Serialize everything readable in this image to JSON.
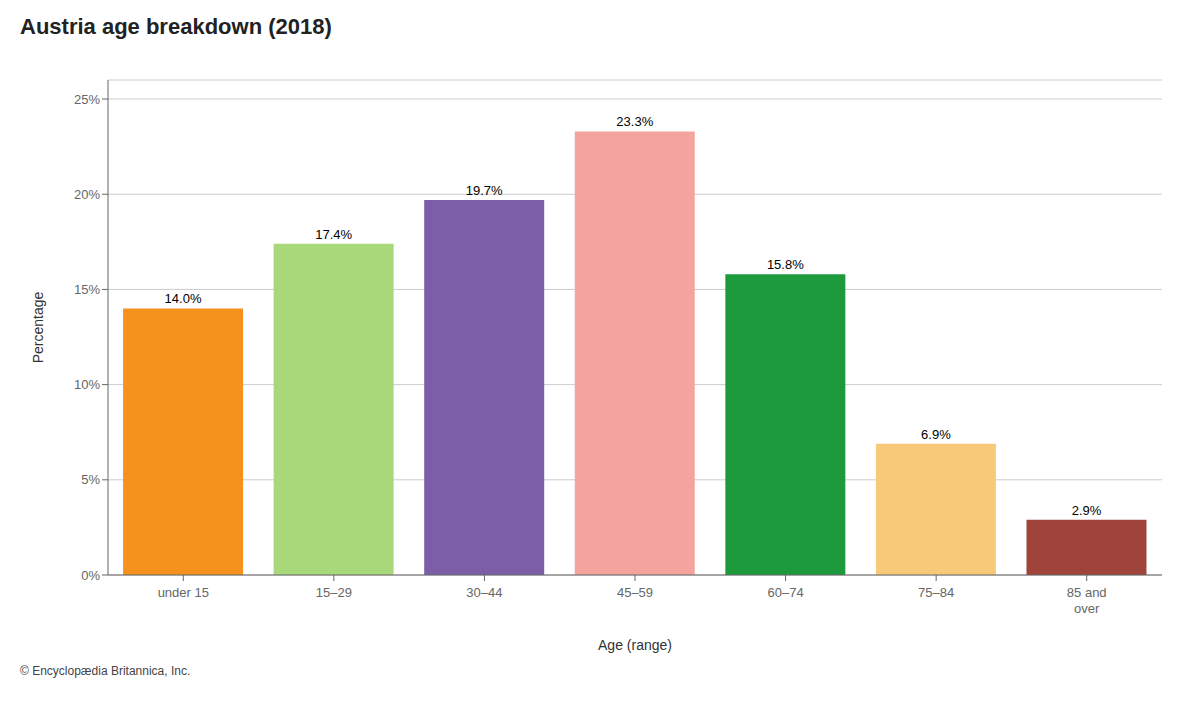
{
  "chart_data": {
    "type": "bar",
    "title": "Austria age breakdown (2018)",
    "categories": [
      "under 15",
      "15–29",
      "30–44",
      "45–59",
      "60–74",
      "75–84",
      "85 and\nover"
    ],
    "values": [
      14.0,
      17.4,
      19.7,
      23.3,
      15.8,
      6.9,
      2.9
    ],
    "value_labels": [
      "14.0%",
      "17.4%",
      "19.7%",
      "23.3%",
      "15.8%",
      "6.9%",
      "2.9%"
    ],
    "colors": [
      "#F5921E",
      "#A8D87A",
      "#7B5EA7",
      "#F4A49E",
      "#1D9B3C",
      "#F9C97A",
      "#A0433A"
    ],
    "xlabel": "Age (range)",
    "ylabel": "Percentage",
    "ylim": [
      0,
      26
    ],
    "yticks": [
      {
        "value": 0,
        "label": "0%"
      },
      {
        "value": 5,
        "label": "5%"
      },
      {
        "value": 10,
        "label": "10%"
      },
      {
        "value": 15,
        "label": "15%"
      },
      {
        "value": 20,
        "label": "20%"
      },
      {
        "value": 25,
        "label": "25%"
      }
    ],
    "grid": true,
    "data_labels": true,
    "caption": "© Encyclopædia Britannica, Inc."
  }
}
